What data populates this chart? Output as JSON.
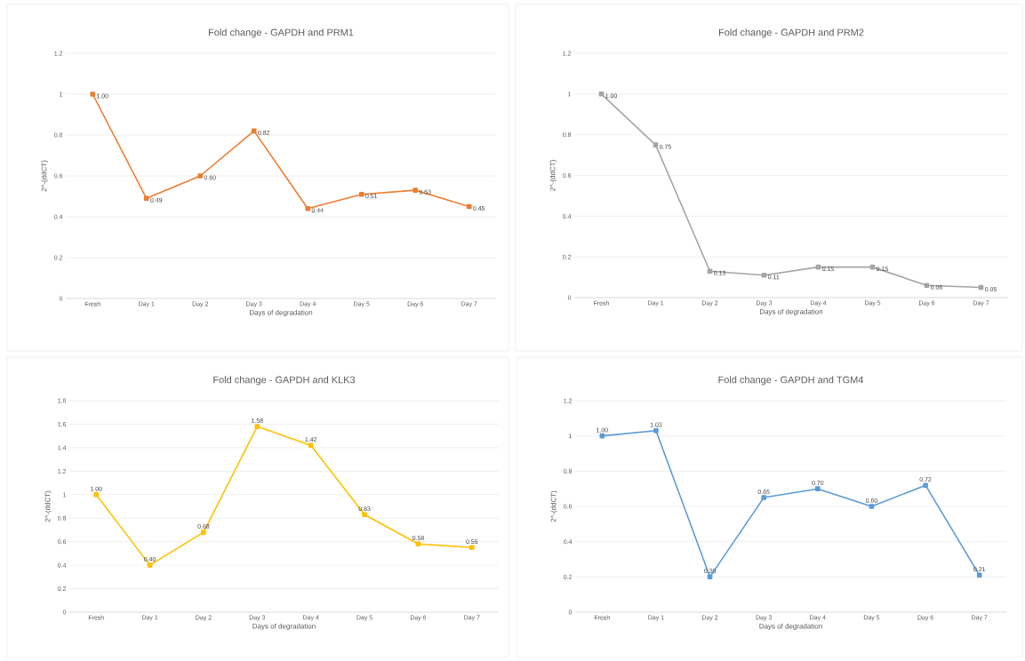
{
  "chart_data": [
    {
      "type": "line",
      "title": "Fold change - GAPDH and PRM1",
      "xlabel": "Days of degradation",
      "ylabel": "2^-(ddCT)",
      "categories": [
        "Fresh",
        "Day 1",
        "Day 2",
        "Day 3",
        "Day 4",
        "Day 5",
        "Day 6",
        "Day 7"
      ],
      "values": [
        1.0,
        0.49,
        0.6,
        0.82,
        0.44,
        0.51,
        0.53,
        0.45
      ],
      "value_labels": [
        "1.00",
        "0.49",
        "0.60",
        "0.82",
        "0.44",
        "0.51",
        "0.53",
        "0.45"
      ],
      "color": "#ed7d31",
      "ylim": [
        0,
        1.2
      ],
      "yticks": [
        0,
        0.2,
        0.4,
        0.6,
        0.8,
        1,
        1.2
      ],
      "grid": "y",
      "marker": "square"
    },
    {
      "type": "line",
      "title": "Fold change - GAPDH and PRM2",
      "xlabel": "Days of degradation",
      "ylabel": "2^-(ddCT)",
      "categories": [
        "Fresh",
        "Day 1",
        "Day 2",
        "Day 3",
        "Day 4",
        "Day 5",
        "Day 6",
        "Day 7"
      ],
      "values": [
        1.0,
        0.75,
        0.13,
        0.11,
        0.15,
        0.15,
        0.06,
        0.05
      ],
      "value_labels": [
        "1.00",
        "0.75",
        "0.13",
        "0.11",
        "0.15",
        "0.15",
        "0.06",
        "0.05"
      ],
      "color": "#a5a5a5",
      "ylim": [
        0,
        1.2
      ],
      "yticks": [
        0,
        0.2,
        0.4,
        0.6,
        0.8,
        1,
        1.2
      ],
      "grid": "y",
      "marker": "square"
    },
    {
      "type": "line",
      "title": "Fold change - GAPDH and KLK3",
      "xlabel": "Days of degradation",
      "ylabel": "2^-(ddCT)",
      "categories": [
        "Fresh",
        "Day 1",
        "Day 2",
        "Day 3",
        "Day 4",
        "Day 5",
        "Day 6",
        "Day 7"
      ],
      "values": [
        1.0,
        0.4,
        0.68,
        1.58,
        1.42,
        0.83,
        0.58,
        0.55
      ],
      "value_labels": [
        "1.00",
        "0.40",
        "0.68",
        "1.58",
        "1.42",
        "0.83",
        "0.58",
        "0.55"
      ],
      "color": "#ffc000",
      "ylim": [
        0,
        1.8
      ],
      "yticks": [
        0,
        0.2,
        0.4,
        0.6,
        0.8,
        1,
        1.2,
        1.4,
        1.6,
        1.8
      ],
      "grid": "y",
      "marker": "square"
    },
    {
      "type": "line",
      "title": "Fold change - GAPDH and TGM4",
      "xlabel": "Days of degradation",
      "ylabel": "2^-(ddCT)",
      "categories": [
        "Fresh",
        "Day 1",
        "Day 2",
        "Day 3",
        "Day 4",
        "Day 5",
        "Day 6",
        "Day 7"
      ],
      "values": [
        1.0,
        1.03,
        0.2,
        0.65,
        0.7,
        0.6,
        0.72,
        0.21
      ],
      "value_labels": [
        "1.00",
        "1.03",
        "0.20",
        "0.65",
        "0.70",
        "0.60",
        "0.72",
        "0.21"
      ],
      "color": "#5b9bd5",
      "ylim": [
        0,
        1.2
      ],
      "yticks": [
        0,
        0.2,
        0.4,
        0.6,
        0.8,
        1,
        1.2
      ],
      "grid": "y",
      "marker": "square"
    }
  ]
}
